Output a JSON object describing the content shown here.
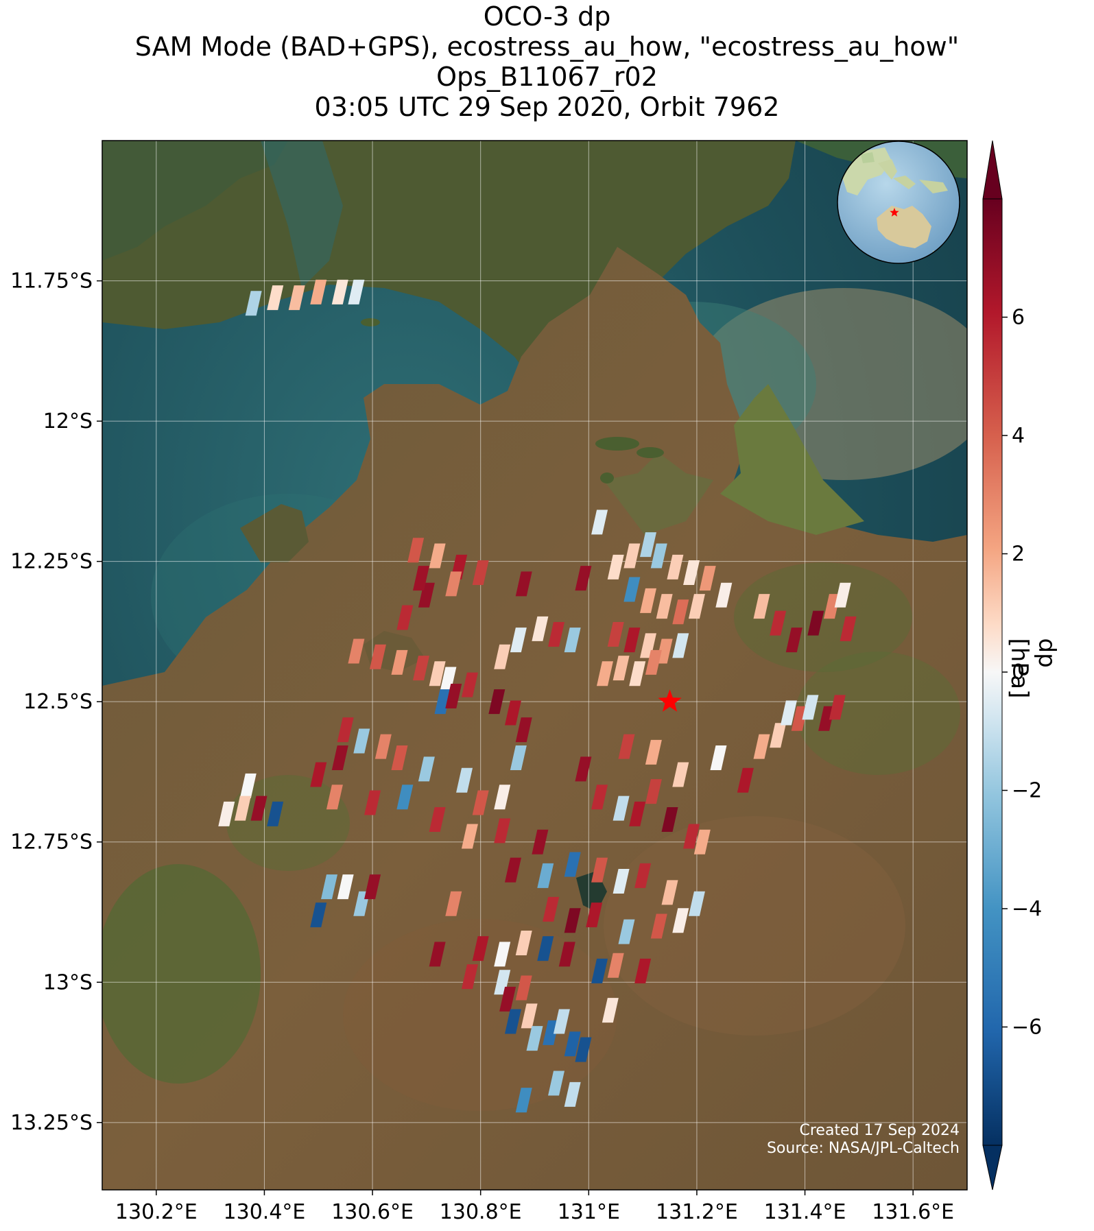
{
  "title": {
    "line1": "OCO-3 dp",
    "line2": "SAM Mode (BAD+GPS), ecostress_au_how, \"ecostress_au_how\"",
    "line3": "Ops_B11067_r02",
    "line4": "03:05 UTC 29 Sep 2020, Orbit 7962"
  },
  "map": {
    "lon_range": [
      130.1,
      131.7
    ],
    "lat_range": [
      -13.37,
      -11.5
    ],
    "lon_ticks": [
      {
        "value": 130.2,
        "label": "130.2°E"
      },
      {
        "value": 130.4,
        "label": "130.4°E"
      },
      {
        "value": 130.6,
        "label": "130.6°E"
      },
      {
        "value": 130.8,
        "label": "130.8°E"
      },
      {
        "value": 131.0,
        "label": "131°E"
      },
      {
        "value": 131.2,
        "label": "131.2°E"
      },
      {
        "value": 131.4,
        "label": "131.4°E"
      },
      {
        "value": 131.6,
        "label": "131.6°E"
      }
    ],
    "lat_ticks": [
      {
        "value": -11.75,
        "label": "11.75°S"
      },
      {
        "value": -12.0,
        "label": "12°S"
      },
      {
        "value": -12.25,
        "label": "12.25°S"
      },
      {
        "value": -12.5,
        "label": "12.5°S"
      },
      {
        "value": -12.75,
        "label": "12.75°S"
      },
      {
        "value": -13.0,
        "label": "13°S"
      },
      {
        "value": -13.25,
        "label": "13.25°S"
      }
    ],
    "gridlines": true,
    "target_marker": {
      "lon": 131.15,
      "lat": -12.5,
      "color": "#ff0000",
      "shape": "star-icon"
    },
    "inset_globe": "top-right",
    "background": "satellite imagery"
  },
  "colorbar": {
    "label": "dp [hPa]",
    "cmap": "RdBu_r",
    "vmin": -8,
    "vmax": 8,
    "ticks": [
      {
        "value": 6,
        "label": "6"
      },
      {
        "value": 4,
        "label": "4"
      },
      {
        "value": 2,
        "label": "2"
      },
      {
        "value": 0,
        "label": "0"
      },
      {
        "value": -2,
        "label": "−2"
      },
      {
        "value": -4,
        "label": "−4"
      },
      {
        "value": -6,
        "label": "−6"
      }
    ],
    "extend": "both"
  },
  "credit": {
    "line1": "Created 17 Sep 2024",
    "line2": "Source: NASA/JPL-Caltech"
  },
  "chart_data": {
    "type": "scatter",
    "title": "OCO-3 dp",
    "xlabel": "",
    "ylabel": "",
    "xlim": [
      130.1,
      131.7
    ],
    "ylim": [
      -13.37,
      -11.5
    ],
    "value_label": "dp [hPa]",
    "points": [
      {
        "lon": 130.38,
        "lat": -11.79,
        "dp": -2.5
      },
      {
        "lon": 130.42,
        "lat": -11.78,
        "dp": 1.5
      },
      {
        "lon": 130.46,
        "lat": -11.78,
        "dp": 2.5
      },
      {
        "lon": 130.5,
        "lat": -11.77,
        "dp": 3.0
      },
      {
        "lon": 130.54,
        "lat": -11.77,
        "dp": 1.0
      },
      {
        "lon": 130.57,
        "lat": -11.77,
        "dp": -1.0
      },
      {
        "lon": 130.68,
        "lat": -12.23,
        "dp": 5.0
      },
      {
        "lon": 130.72,
        "lat": -12.24,
        "dp": 3.0
      },
      {
        "lon": 130.76,
        "lat": -12.26,
        "dp": 6.5
      },
      {
        "lon": 130.8,
        "lat": -12.27,
        "dp": 5.5
      },
      {
        "lon": 130.7,
        "lat": -12.31,
        "dp": 7.0
      },
      {
        "lon": 130.66,
        "lat": -12.35,
        "dp": 6.0
      },
      {
        "lon": 130.69,
        "lat": -12.28,
        "dp": 6.8
      },
      {
        "lon": 130.75,
        "lat": -12.29,
        "dp": 4.0
      },
      {
        "lon": 130.88,
        "lat": -12.29,
        "dp": 7.0
      },
      {
        "lon": 130.57,
        "lat": -12.41,
        "dp": 4.0
      },
      {
        "lon": 130.61,
        "lat": -12.42,
        "dp": 5.0
      },
      {
        "lon": 130.65,
        "lat": -12.43,
        "dp": 3.5
      },
      {
        "lon": 130.69,
        "lat": -12.44,
        "dp": 5.5
      },
      {
        "lon": 130.72,
        "lat": -12.45,
        "dp": 2.0
      },
      {
        "lon": 130.74,
        "lat": -12.46,
        "dp": 0.0
      },
      {
        "lon": 130.73,
        "lat": -12.5,
        "dp": -6.0
      },
      {
        "lon": 130.75,
        "lat": -12.49,
        "dp": 7.0
      },
      {
        "lon": 130.78,
        "lat": -12.47,
        "dp": 6.0
      },
      {
        "lon": 130.83,
        "lat": -12.5,
        "dp": 7.5
      },
      {
        "lon": 130.86,
        "lat": -12.52,
        "dp": 6.5
      },
      {
        "lon": 130.88,
        "lat": -12.55,
        "dp": 7.0
      },
      {
        "lon": 130.84,
        "lat": -12.42,
        "dp": 2.0
      },
      {
        "lon": 130.87,
        "lat": -12.39,
        "dp": -1.0
      },
      {
        "lon": 130.91,
        "lat": -12.37,
        "dp": 1.0
      },
      {
        "lon": 130.94,
        "lat": -12.38,
        "dp": 6.0
      },
      {
        "lon": 130.97,
        "lat": -12.39,
        "dp": -3.0
      },
      {
        "lon": 130.99,
        "lat": -12.28,
        "dp": 7.0
      },
      {
        "lon": 131.02,
        "lat": -12.18,
        "dp": -1.0
      },
      {
        "lon": 131.05,
        "lat": -12.26,
        "dp": 1.5
      },
      {
        "lon": 131.08,
        "lat": -12.24,
        "dp": 2.0
      },
      {
        "lon": 131.11,
        "lat": -12.22,
        "dp": -2.5
      },
      {
        "lon": 131.13,
        "lat": -12.24,
        "dp": -3.0
      },
      {
        "lon": 131.16,
        "lat": -12.26,
        "dp": 2.0
      },
      {
        "lon": 131.19,
        "lat": -12.27,
        "dp": 1.0
      },
      {
        "lon": 131.22,
        "lat": -12.28,
        "dp": 3.5
      },
      {
        "lon": 131.25,
        "lat": -12.31,
        "dp": 0.5
      },
      {
        "lon": 131.08,
        "lat": -12.3,
        "dp": -5.0
      },
      {
        "lon": 131.11,
        "lat": -12.32,
        "dp": 3.0
      },
      {
        "lon": 131.14,
        "lat": -12.33,
        "dp": 2.5
      },
      {
        "lon": 131.17,
        "lat": -12.34,
        "dp": 4.5
      },
      {
        "lon": 131.2,
        "lat": -12.33,
        "dp": 2.0
      },
      {
        "lon": 131.05,
        "lat": -12.38,
        "dp": 5.5
      },
      {
        "lon": 131.08,
        "lat": -12.39,
        "dp": 6.5
      },
      {
        "lon": 131.11,
        "lat": -12.4,
        "dp": 2.0
      },
      {
        "lon": 131.14,
        "lat": -12.41,
        "dp": 3.5
      },
      {
        "lon": 131.17,
        "lat": -12.4,
        "dp": -1.5
      },
      {
        "lon": 131.03,
        "lat": -12.45,
        "dp": 3.0
      },
      {
        "lon": 131.06,
        "lat": -12.44,
        "dp": 2.5
      },
      {
        "lon": 131.09,
        "lat": -12.45,
        "dp": 1.5
      },
      {
        "lon": 131.12,
        "lat": -12.43,
        "dp": 4.0
      },
      {
        "lon": 131.32,
        "lat": -12.33,
        "dp": 2.5
      },
      {
        "lon": 131.35,
        "lat": -12.36,
        "dp": 6.0
      },
      {
        "lon": 131.38,
        "lat": -12.39,
        "dp": 7.0
      },
      {
        "lon": 131.42,
        "lat": -12.36,
        "dp": 7.5
      },
      {
        "lon": 131.45,
        "lat": -12.33,
        "dp": 4.0
      },
      {
        "lon": 131.47,
        "lat": -12.31,
        "dp": 0.5
      },
      {
        "lon": 131.48,
        "lat": -12.37,
        "dp": 6.0
      },
      {
        "lon": 131.32,
        "lat": -12.58,
        "dp": 3.0
      },
      {
        "lon": 131.35,
        "lat": -12.56,
        "dp": 2.0
      },
      {
        "lon": 131.37,
        "lat": -12.52,
        "dp": -1.0
      },
      {
        "lon": 131.39,
        "lat": -12.53,
        "dp": 5.0
      },
      {
        "lon": 131.41,
        "lat": -12.51,
        "dp": -1.5
      },
      {
        "lon": 131.44,
        "lat": -12.53,
        "dp": 7.0
      },
      {
        "lon": 131.46,
        "lat": -12.51,
        "dp": 6.0
      },
      {
        "lon": 131.29,
        "lat": -12.64,
        "dp": 6.5
      },
      {
        "lon": 131.24,
        "lat": -12.6,
        "dp": 0.0
      },
      {
        "lon": 130.55,
        "lat": -12.55,
        "dp": 6.0
      },
      {
        "lon": 130.58,
        "lat": -12.57,
        "dp": -3.0
      },
      {
        "lon": 130.62,
        "lat": -12.58,
        "dp": 4.0
      },
      {
        "lon": 130.65,
        "lat": -12.6,
        "dp": 5.0
      },
      {
        "lon": 130.7,
        "lat": -12.62,
        "dp": -3.0
      },
      {
        "lon": 130.54,
        "lat": -12.6,
        "dp": 7.0
      },
      {
        "lon": 130.5,
        "lat": -12.63,
        "dp": 6.5
      },
      {
        "lon": 130.53,
        "lat": -12.67,
        "dp": 4.0
      },
      {
        "lon": 130.66,
        "lat": -12.67,
        "dp": -5.0
      },
      {
        "lon": 130.77,
        "lat": -12.64,
        "dp": -2.0
      },
      {
        "lon": 130.8,
        "lat": -12.68,
        "dp": 5.0
      },
      {
        "lon": 130.84,
        "lat": -12.67,
        "dp": 0.5
      },
      {
        "lon": 130.87,
        "lat": -12.6,
        "dp": -3.0
      },
      {
        "lon": 130.99,
        "lat": -12.62,
        "dp": 7.0
      },
      {
        "lon": 131.02,
        "lat": -12.67,
        "dp": 6.0
      },
      {
        "lon": 131.07,
        "lat": -12.58,
        "dp": 5.5
      },
      {
        "lon": 131.12,
        "lat": -12.59,
        "dp": 3.0
      },
      {
        "lon": 131.17,
        "lat": -12.63,
        "dp": 2.0
      },
      {
        "lon": 131.12,
        "lat": -12.66,
        "dp": 5.5
      },
      {
        "lon": 131.06,
        "lat": -12.69,
        "dp": -2.0
      },
      {
        "lon": 131.09,
        "lat": -12.7,
        "dp": 6.5
      },
      {
        "lon": 131.15,
        "lat": -12.71,
        "dp": 7.5
      },
      {
        "lon": 131.19,
        "lat": -12.74,
        "dp": 6.0
      },
      {
        "lon": 131.21,
        "lat": -12.75,
        "dp": 3.0
      },
      {
        "lon": 130.72,
        "lat": -12.71,
        "dp": 6.0
      },
      {
        "lon": 130.78,
        "lat": -12.74,
        "dp": 3.0
      },
      {
        "lon": 130.84,
        "lat": -12.73,
        "dp": 6.0
      },
      {
        "lon": 130.91,
        "lat": -12.75,
        "dp": 7.0
      },
      {
        "lon": 130.86,
        "lat": -12.8,
        "dp": 7.0
      },
      {
        "lon": 130.92,
        "lat": -12.81,
        "dp": -4.0
      },
      {
        "lon": 130.97,
        "lat": -12.79,
        "dp": -6.0
      },
      {
        "lon": 131.02,
        "lat": -12.8,
        "dp": 5.0
      },
      {
        "lon": 131.06,
        "lat": -12.82,
        "dp": -1.0
      },
      {
        "lon": 131.1,
        "lat": -12.81,
        "dp": 6.0
      },
      {
        "lon": 131.15,
        "lat": -12.84,
        "dp": 2.5
      },
      {
        "lon": 131.2,
        "lat": -12.86,
        "dp": -2.0
      },
      {
        "lon": 130.52,
        "lat": -12.83,
        "dp": -3.5
      },
      {
        "lon": 130.55,
        "lat": -12.83,
        "dp": 0.0
      },
      {
        "lon": 130.58,
        "lat": -12.86,
        "dp": -3.0
      },
      {
        "lon": 130.6,
        "lat": -12.83,
        "dp": 7.0
      },
      {
        "lon": 130.5,
        "lat": -12.88,
        "dp": -7.0
      },
      {
        "lon": 130.75,
        "lat": -12.86,
        "dp": 4.0
      },
      {
        "lon": 130.93,
        "lat": -12.87,
        "dp": 6.0
      },
      {
        "lon": 130.97,
        "lat": -12.89,
        "dp": 7.5
      },
      {
        "lon": 131.01,
        "lat": -12.88,
        "dp": 6.5
      },
      {
        "lon": 131.07,
        "lat": -12.91,
        "dp": -3.0
      },
      {
        "lon": 131.13,
        "lat": -12.9,
        "dp": 5.0
      },
      {
        "lon": 131.17,
        "lat": -12.89,
        "dp": 0.5
      },
      {
        "lon": 130.88,
        "lat": -12.93,
        "dp": 2.0
      },
      {
        "lon": 130.92,
        "lat": -12.94,
        "dp": -7.0
      },
      {
        "lon": 130.96,
        "lat": -12.95,
        "dp": 7.0
      },
      {
        "lon": 130.8,
        "lat": -12.94,
        "dp": 6.5
      },
      {
        "lon": 130.84,
        "lat": -12.95,
        "dp": 0.0
      },
      {
        "lon": 130.72,
        "lat": -12.95,
        "dp": 7.0
      },
      {
        "lon": 130.78,
        "lat": -12.99,
        "dp": 6.0
      },
      {
        "lon": 130.84,
        "lat": -13.0,
        "dp": -1.5
      },
      {
        "lon": 130.88,
        "lat": -13.01,
        "dp": 5.0
      },
      {
        "lon": 131.05,
        "lat": -12.97,
        "dp": 4.0
      },
      {
        "lon": 131.02,
        "lat": -12.98,
        "dp": -7.0
      },
      {
        "lon": 131.1,
        "lat": -12.98,
        "dp": 6.5
      },
      {
        "lon": 130.85,
        "lat": -13.03,
        "dp": 7.0
      },
      {
        "lon": 130.86,
        "lat": -13.07,
        "dp": -7.0
      },
      {
        "lon": 130.89,
        "lat": -13.06,
        "dp": 2.0
      },
      {
        "lon": 130.9,
        "lat": -13.1,
        "dp": -3.0
      },
      {
        "lon": 130.93,
        "lat": -13.09,
        "dp": -6.0
      },
      {
        "lon": 130.95,
        "lat": -13.07,
        "dp": -2.0
      },
      {
        "lon": 130.97,
        "lat": -13.11,
        "dp": -6.5
      },
      {
        "lon": 130.99,
        "lat": -13.12,
        "dp": -7.0
      },
      {
        "lon": 131.04,
        "lat": -13.05,
        "dp": 1.0
      },
      {
        "lon": 130.94,
        "lat": -13.18,
        "dp": -3.0
      },
      {
        "lon": 130.88,
        "lat": -13.21,
        "dp": -5.0
      },
      {
        "lon": 130.97,
        "lat": -13.2,
        "dp": -2.0
      },
      {
        "lon": 130.6,
        "lat": -12.68,
        "dp": 6.0
      },
      {
        "lon": 130.37,
        "lat": -12.65,
        "dp": 0.0
      },
      {
        "lon": 130.36,
        "lat": -12.69,
        "dp": 2.0
      },
      {
        "lon": 130.39,
        "lat": -12.69,
        "dp": 7.0
      },
      {
        "lon": 130.42,
        "lat": -12.7,
        "dp": -7.0
      },
      {
        "lon": 130.33,
        "lat": -12.7,
        "dp": 0.5
      }
    ]
  }
}
